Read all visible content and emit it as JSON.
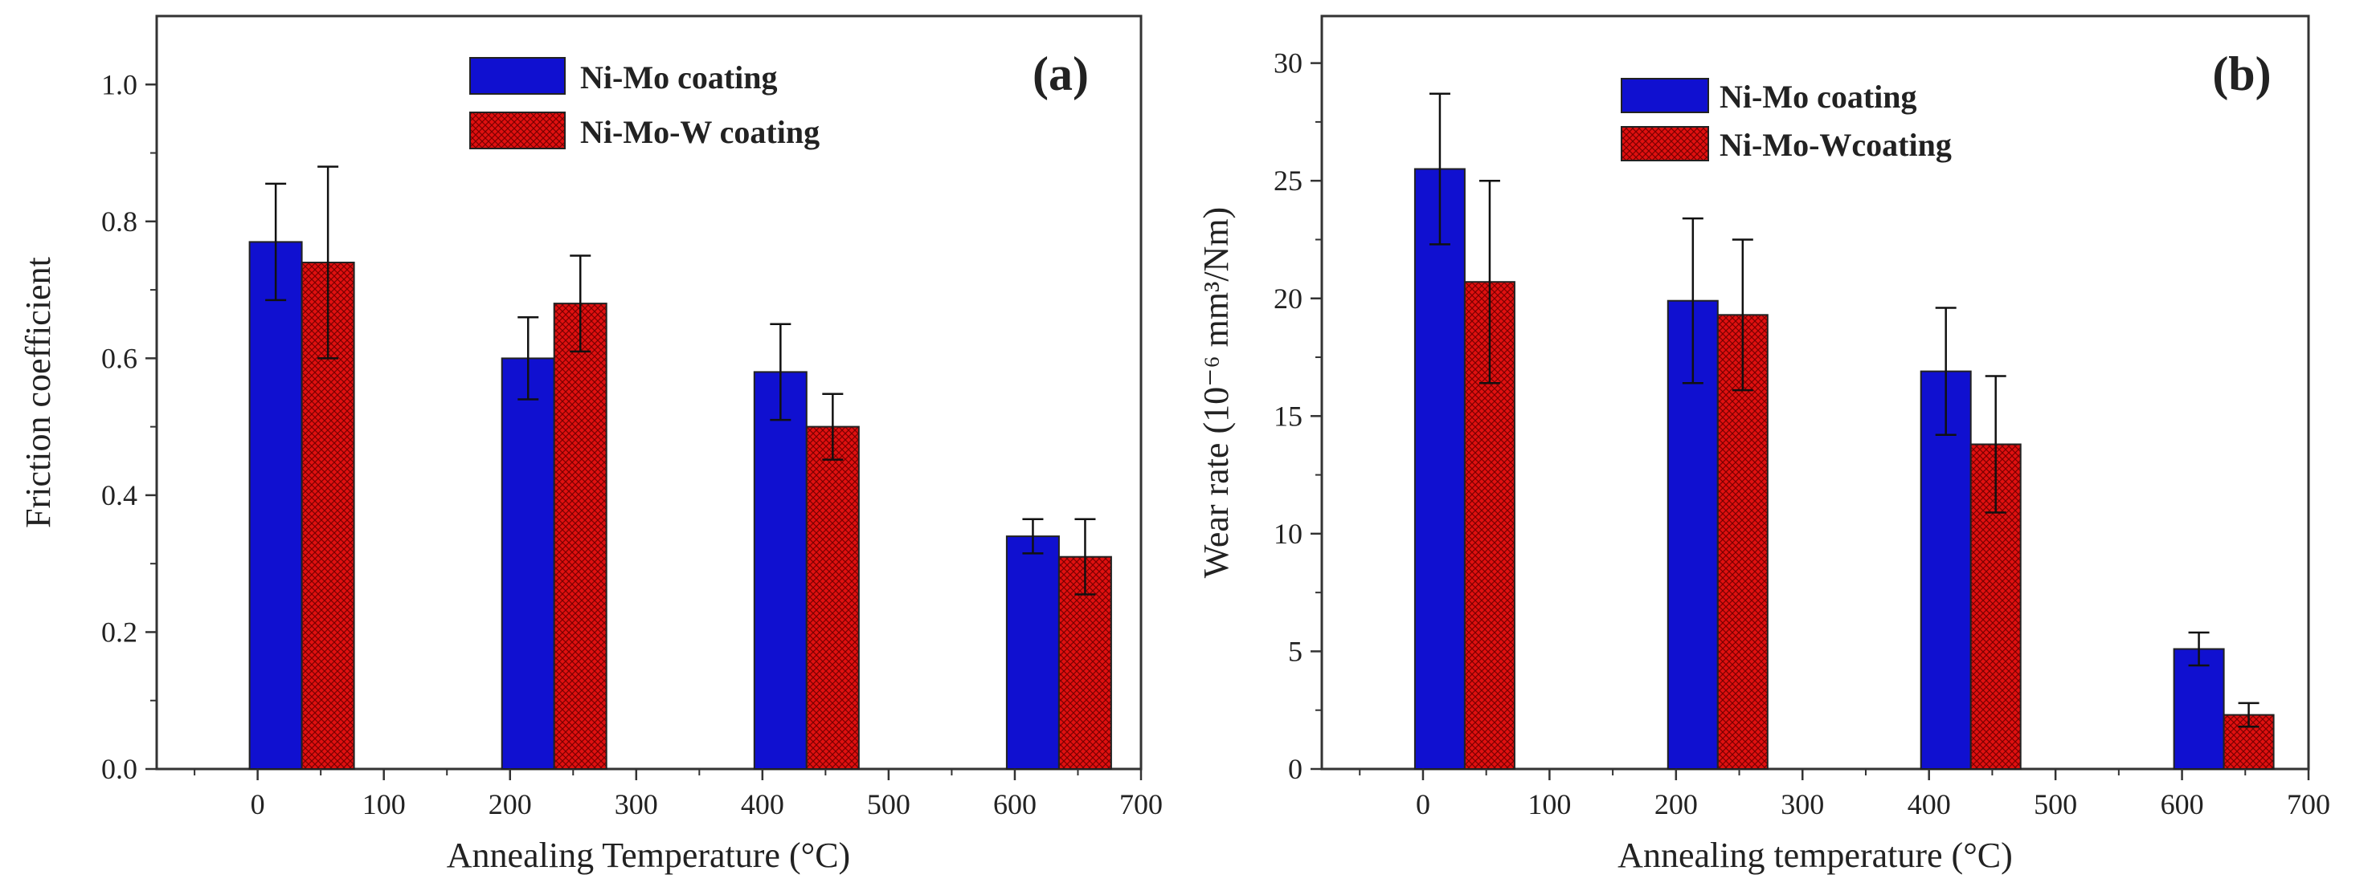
{
  "chart_data": [
    {
      "type": "bar",
      "panel_label": "(a)",
      "xlabel": "Annealing Temperature (°C)",
      "ylabel": "Friction coefficient",
      "xlim": [
        -80,
        700
      ],
      "ylim": [
        0,
        1.1
      ],
      "xticks": [
        0,
        100,
        200,
        300,
        400,
        500,
        600,
        700
      ],
      "yticks": [
        0.0,
        0.2,
        0.4,
        0.6,
        0.8,
        1.0
      ],
      "ytick_labels": [
        "0.0",
        "0.2",
        "0.4",
        "0.6",
        "0.8",
        "1.0"
      ],
      "categories": [
        0,
        200,
        400,
        600
      ],
      "legend_position": "top-center",
      "series": [
        {
          "name": "Ni-Mo coating",
          "color": "#1010d0",
          "values": [
            0.77,
            0.6,
            0.58,
            0.34
          ],
          "errors": [
            0.085,
            0.06,
            0.07,
            0.025
          ]
        },
        {
          "name": "Ni-Mo-W coating",
          "color": "#e01010",
          "values": [
            0.74,
            0.68,
            0.5,
            0.31
          ],
          "errors": [
            0.14,
            0.07,
            0.048,
            0.055
          ]
        }
      ]
    },
    {
      "type": "bar",
      "panel_label": "(b)",
      "xlabel": "Annealing temperature (°C)",
      "ylabel": "Wear rate (10⁻⁶ mm³/Nm)",
      "xlim": [
        -80,
        700
      ],
      "ylim": [
        0,
        32
      ],
      "xticks": [
        0,
        100,
        200,
        300,
        400,
        500,
        600,
        700
      ],
      "yticks": [
        0,
        5,
        10,
        15,
        20,
        25,
        30
      ],
      "ytick_labels": [
        "0",
        "5",
        "10",
        "15",
        "20",
        "25",
        "30"
      ],
      "categories": [
        0,
        200,
        400,
        600
      ],
      "legend_position": "top-center",
      "series": [
        {
          "name": "Ni-Mo coating",
          "color": "#1010d0",
          "values": [
            25.5,
            19.9,
            16.9,
            5.1
          ],
          "errors": [
            3.2,
            3.5,
            2.7,
            0.7
          ]
        },
        {
          "name": "Ni-Mo-Wcoating",
          "color": "#e01010",
          "values": [
            20.7,
            19.3,
            13.8,
            2.3
          ],
          "errors": [
            4.3,
            3.2,
            2.9,
            0.5
          ]
        }
      ]
    }
  ]
}
